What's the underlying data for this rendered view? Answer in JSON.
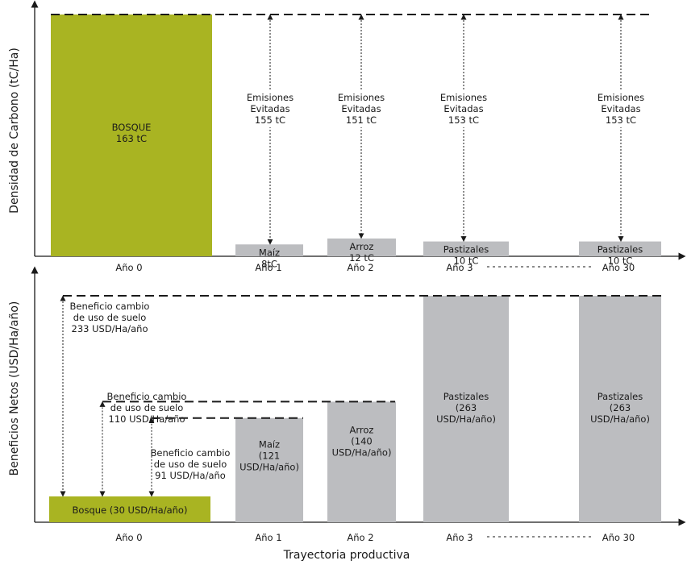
{
  "colors": {
    "forest": "#a9b422",
    "crop": "#bcbdc0",
    "axis": "#1a1a1a"
  },
  "figure": {
    "xlabel": "Trayectoria productiva"
  },
  "chart_data": [
    {
      "type": "bar",
      "ylabel": "Densidad de Carbono (tC/Ha)",
      "categories": [
        "Año 0",
        "Año 1",
        "Año 2",
        "Año 3",
        "Año 30"
      ],
      "values": [
        163,
        8,
        12,
        10,
        10
      ],
      "unit": "tC",
      "bar_labels": [
        [
          "BOSQUE",
          "163 tC"
        ],
        [
          "Maíz",
          "8tC"
        ],
        [
          "Arroz",
          "12 tC"
        ],
        [
          "Pastizales",
          "10 tC"
        ],
        [
          "Pastizales",
          "10 tC"
        ]
      ],
      "reference_value": 163,
      "annotations": [
        {
          "category": "Año 1",
          "lines": [
            "Emisiones",
            "Evitadas",
            "155 tC"
          ]
        },
        {
          "category": "Año 2",
          "lines": [
            "Emisiones",
            "Evitadas",
            "151 tC"
          ]
        },
        {
          "category": "Año 3",
          "lines": [
            "Emisiones",
            "Evitadas",
            "153 tC"
          ]
        },
        {
          "category": "Año 30",
          "lines": [
            "Emisiones",
            "Evitadas",
            "153 tC"
          ]
        }
      ]
    },
    {
      "type": "bar",
      "ylabel": "Beneficios Netos (USD/Ha/año)",
      "categories": [
        "Año 0",
        "Año 1",
        "Año 2",
        "Año 3",
        "Año 30"
      ],
      "values": [
        30,
        121,
        140,
        263,
        263
      ],
      "unit": "USD/Ha/año",
      "bar_labels": [
        [
          "Bosque (30 USD/Ha/año)"
        ],
        [
          "Maíz",
          "(121",
          "USD/Ha/año)"
        ],
        [
          "Arroz",
          "(140",
          "USD/Ha/año)"
        ],
        [
          "Pastizales",
          "(263",
          "USD/Ha/año)"
        ],
        [
          "Pastizales",
          "(263",
          "USD/Ha/año)"
        ]
      ],
      "annotations": [
        {
          "to_value": 263,
          "lines": [
            "Beneficio cambio",
            "de uso de suelo",
            "233 USD/Ha/año"
          ]
        },
        {
          "to_value": 140,
          "lines": [
            "Beneficio cambio",
            "de uso de suelo",
            "110 USD/Ha/año"
          ]
        },
        {
          "to_value": 121,
          "lines": [
            "Beneficio cambio",
            "de uso de suelo",
            "91 USD/Ha/año"
          ]
        }
      ]
    }
  ]
}
